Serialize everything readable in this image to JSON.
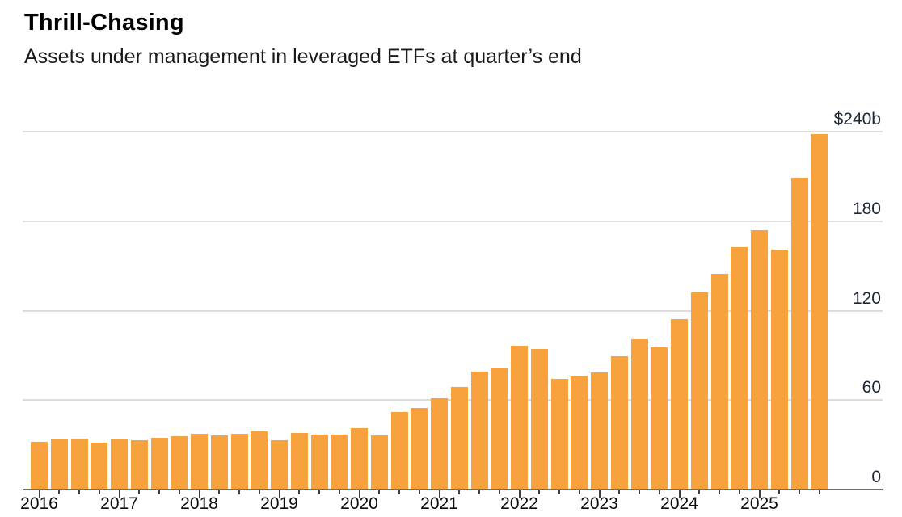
{
  "header": {
    "title": "Thrill-Chasing",
    "subtitle": "Assets under management in leveraged ETFs at quarter’s end"
  },
  "chart_data": {
    "type": "bar",
    "title": "Thrill-Chasing",
    "subtitle": "Assets under management in leveraged ETFs at quarter's end",
    "unit": "billions of US dollars",
    "bar_color": "#F7A23C",
    "gridline_color": "#dcdcdc",
    "axis_line_color": "#6e6e6e",
    "grid": "horizontal",
    "y_axis_side": "right",
    "ylim": [
      0,
      240
    ],
    "y_ticks": [
      {
        "value": 240,
        "label": "$240b"
      },
      {
        "value": 180,
        "label": "180"
      },
      {
        "value": 120,
        "label": "120"
      },
      {
        "value": 60,
        "label": "60"
      },
      {
        "value": 0,
        "label": "0"
      }
    ],
    "x_year_labels": [
      "2016",
      "2017",
      "2018",
      "2019",
      "2020",
      "2021",
      "2022",
      "2023",
      "2024",
      "2025"
    ],
    "categories": [
      "2015 Q4",
      "2016 Q1",
      "2016 Q2",
      "2016 Q3",
      "2016 Q4",
      "2017 Q1",
      "2017 Q2",
      "2017 Q3",
      "2017 Q4",
      "2018 Q1",
      "2018 Q2",
      "2018 Q3",
      "2018 Q4",
      "2019 Q1",
      "2019 Q2",
      "2019 Q3",
      "2019 Q4",
      "2020 Q1",
      "2020 Q2",
      "2020 Q3",
      "2020 Q4",
      "2021 Q1",
      "2021 Q2",
      "2021 Q3",
      "2021 Q4",
      "2022 Q1",
      "2022 Q2",
      "2022 Q3",
      "2022 Q4",
      "2023 Q1",
      "2023 Q2",
      "2023 Q3",
      "2023 Q4",
      "2024 Q1",
      "2024 Q2",
      "2024 Q3",
      "2024 Q4",
      "2025 Q1",
      "2025 Q2",
      "2025 Q3"
    ],
    "values": [
      32,
      33.5,
      34,
      31.5,
      33.5,
      33,
      34.5,
      36,
      37.5,
      36.5,
      37.5,
      39,
      33,
      38,
      37,
      37,
      41,
      36.5,
      52,
      55,
      61.5,
      69,
      79,
      81.5,
      96.5,
      94.5,
      74.5,
      76,
      78.5,
      89.5,
      101,
      95.5,
      114.5,
      132,
      144.5,
      162.5,
      174,
      161,
      209,
      238.5
    ]
  }
}
